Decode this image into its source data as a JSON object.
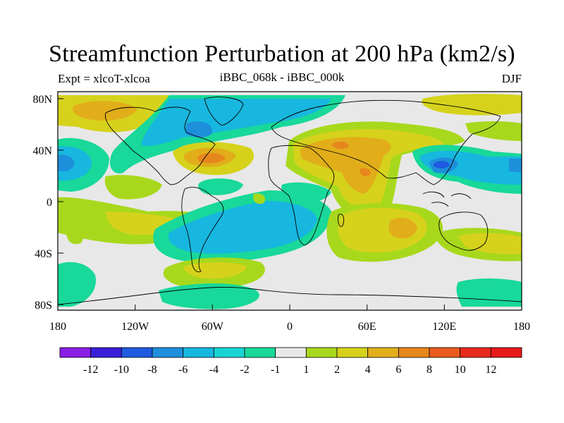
{
  "title": "Streamfunction Perturbation at 200 hPa (km2/s)",
  "subtitle_left": "Expt = xlcoT-xlcoa",
  "subtitle_center": "iBBC_068k - iBBC_000k",
  "subtitle_right": "DJF",
  "axes": {
    "lat_labels": [
      "80N",
      "40N",
      "0",
      "40S",
      "80S"
    ],
    "lon_labels": [
      "180",
      "120W",
      "60W",
      "0",
      "60E",
      "120E",
      "180"
    ]
  },
  "colorbar": {
    "labels": [
      "-12",
      "-10",
      "-8",
      "-6",
      "-4",
      "-2",
      "-1",
      "1",
      "2",
      "4",
      "6",
      "8",
      "10",
      "12"
    ],
    "colors": [
      "#8a1fe6",
      "#3a1fd8",
      "#1f5ae0",
      "#1e8fdb",
      "#17b7df",
      "#19d3d3",
      "#18d89a",
      "#e8e8e8",
      "#a8d81c",
      "#d6d21c",
      "#e1ae1a",
      "#e6871c",
      "#eb5a1d",
      "#e82a1e",
      "#e61a1a"
    ]
  },
  "chart_data": {
    "type": "heatmap",
    "title": "Streamfunction Perturbation at 200 hPa (km2/s)",
    "variable": "Streamfunction perturbation",
    "units": "km2/s",
    "level": "200 hPa",
    "season": "DJF",
    "experiment": "xlcoT-xlcoa",
    "comparison": "iBBC_068k - iBBC_000k",
    "x_range": [
      -180,
      180
    ],
    "y_range": [
      -90,
      90
    ],
    "contour_levels": [
      -12,
      -10,
      -8,
      -6,
      -4,
      -2,
      -1,
      1,
      2,
      4,
      6,
      8,
      10,
      12
    ],
    "features": [
      {
        "name": "N Pacific positive",
        "lon": -150,
        "lat": 65,
        "value": 5
      },
      {
        "name": "Greenland/N Atlantic negative",
        "lon": -60,
        "lat": 60,
        "value": -5
      },
      {
        "name": "NE Pacific negative",
        "lon": -180,
        "lat": 35,
        "value": -6
      },
      {
        "name": "W Pacific negative",
        "lon": 120,
        "lat": 35,
        "value": -7
      },
      {
        "name": "US east coast positive",
        "lon": -70,
        "lat": 35,
        "value": 8
      },
      {
        "name": "Eurasia/Middle East positive",
        "lon": 45,
        "lat": 35,
        "value": 6
      },
      {
        "name": "Indian Ocean positive",
        "lon": 90,
        "lat": -20,
        "value": 6
      },
      {
        "name": "South Atlantic negative",
        "lon": -20,
        "lat": -15,
        "value": -4
      },
      {
        "name": "Southern Ocean positive",
        "lon": -50,
        "lat": -55,
        "value": 4
      },
      {
        "name": "SW Pacific positive",
        "lon": 160,
        "lat": -35,
        "value": 4
      },
      {
        "name": "SE Pacific negative",
        "lon": -150,
        "lat": -50,
        "value": -3
      }
    ]
  }
}
